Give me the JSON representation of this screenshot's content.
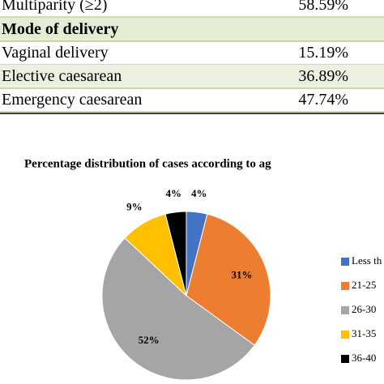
{
  "table": {
    "rows": [
      [
        "Multiparity (≥2)",
        "58.59%"
      ],
      [
        "Mode of delivery"
      ],
      [
        "Vaginal delivery",
        "15.19%"
      ],
      [
        "Elective caesarean",
        "36.89%"
      ],
      [
        "Emergency caesarean",
        "47.74%"
      ]
    ]
  },
  "chart_data": {
    "type": "pie",
    "title": "Percentage distribution of cases according to ag",
    "categories": [
      "Less th",
      "21-25",
      "26-30",
      "31-35",
      "36-40"
    ],
    "values": [
      4,
      31,
      52,
      9,
      4
    ],
    "value_labels": [
      "4%",
      "31%",
      "52%",
      "9%",
      "4%"
    ],
    "colors": [
      "#4472c4",
      "#ed7d31",
      "#a5a5a5",
      "#ffc000",
      "#000000"
    ],
    "legend": "right"
  }
}
